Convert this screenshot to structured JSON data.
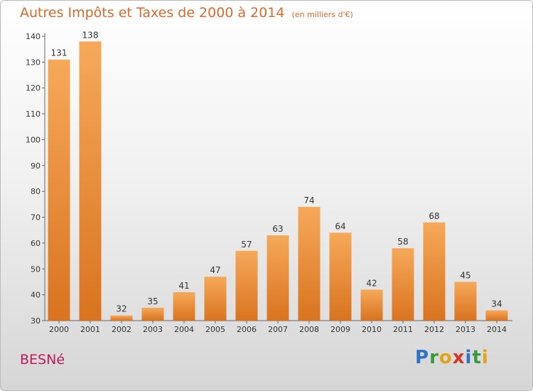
{
  "header": {
    "title": "Autres Impôts et Taxes de 2000 à 2014",
    "unit": "(en milliers d'€)"
  },
  "footer": {
    "city": "BESNé",
    "logo": "Proxiti"
  },
  "colors": {
    "title": "#e0682a",
    "city": "#c2185b",
    "bar_light": "#f6a95a",
    "bar_dark": "#d9731f"
  },
  "chart_data": {
    "type": "bar",
    "title": "Autres Impôts et Taxes de 2000 à 2014",
    "subtitle": "(en milliers d'€)",
    "xlabel": "",
    "ylabel": "",
    "categories": [
      "2000",
      "2001",
      "2002",
      "2003",
      "2004",
      "2005",
      "2006",
      "2007",
      "2008",
      "2009",
      "2010",
      "2011",
      "2012",
      "2013",
      "2014"
    ],
    "values": [
      131,
      138,
      32,
      35,
      41,
      47,
      57,
      63,
      74,
      64,
      42,
      58,
      68,
      45,
      34
    ],
    "ylim": [
      30,
      140
    ],
    "yticks": [
      30,
      40,
      50,
      60,
      70,
      80,
      90,
      100,
      110,
      120,
      130,
      140
    ],
    "grid": false,
    "legend": "none"
  }
}
